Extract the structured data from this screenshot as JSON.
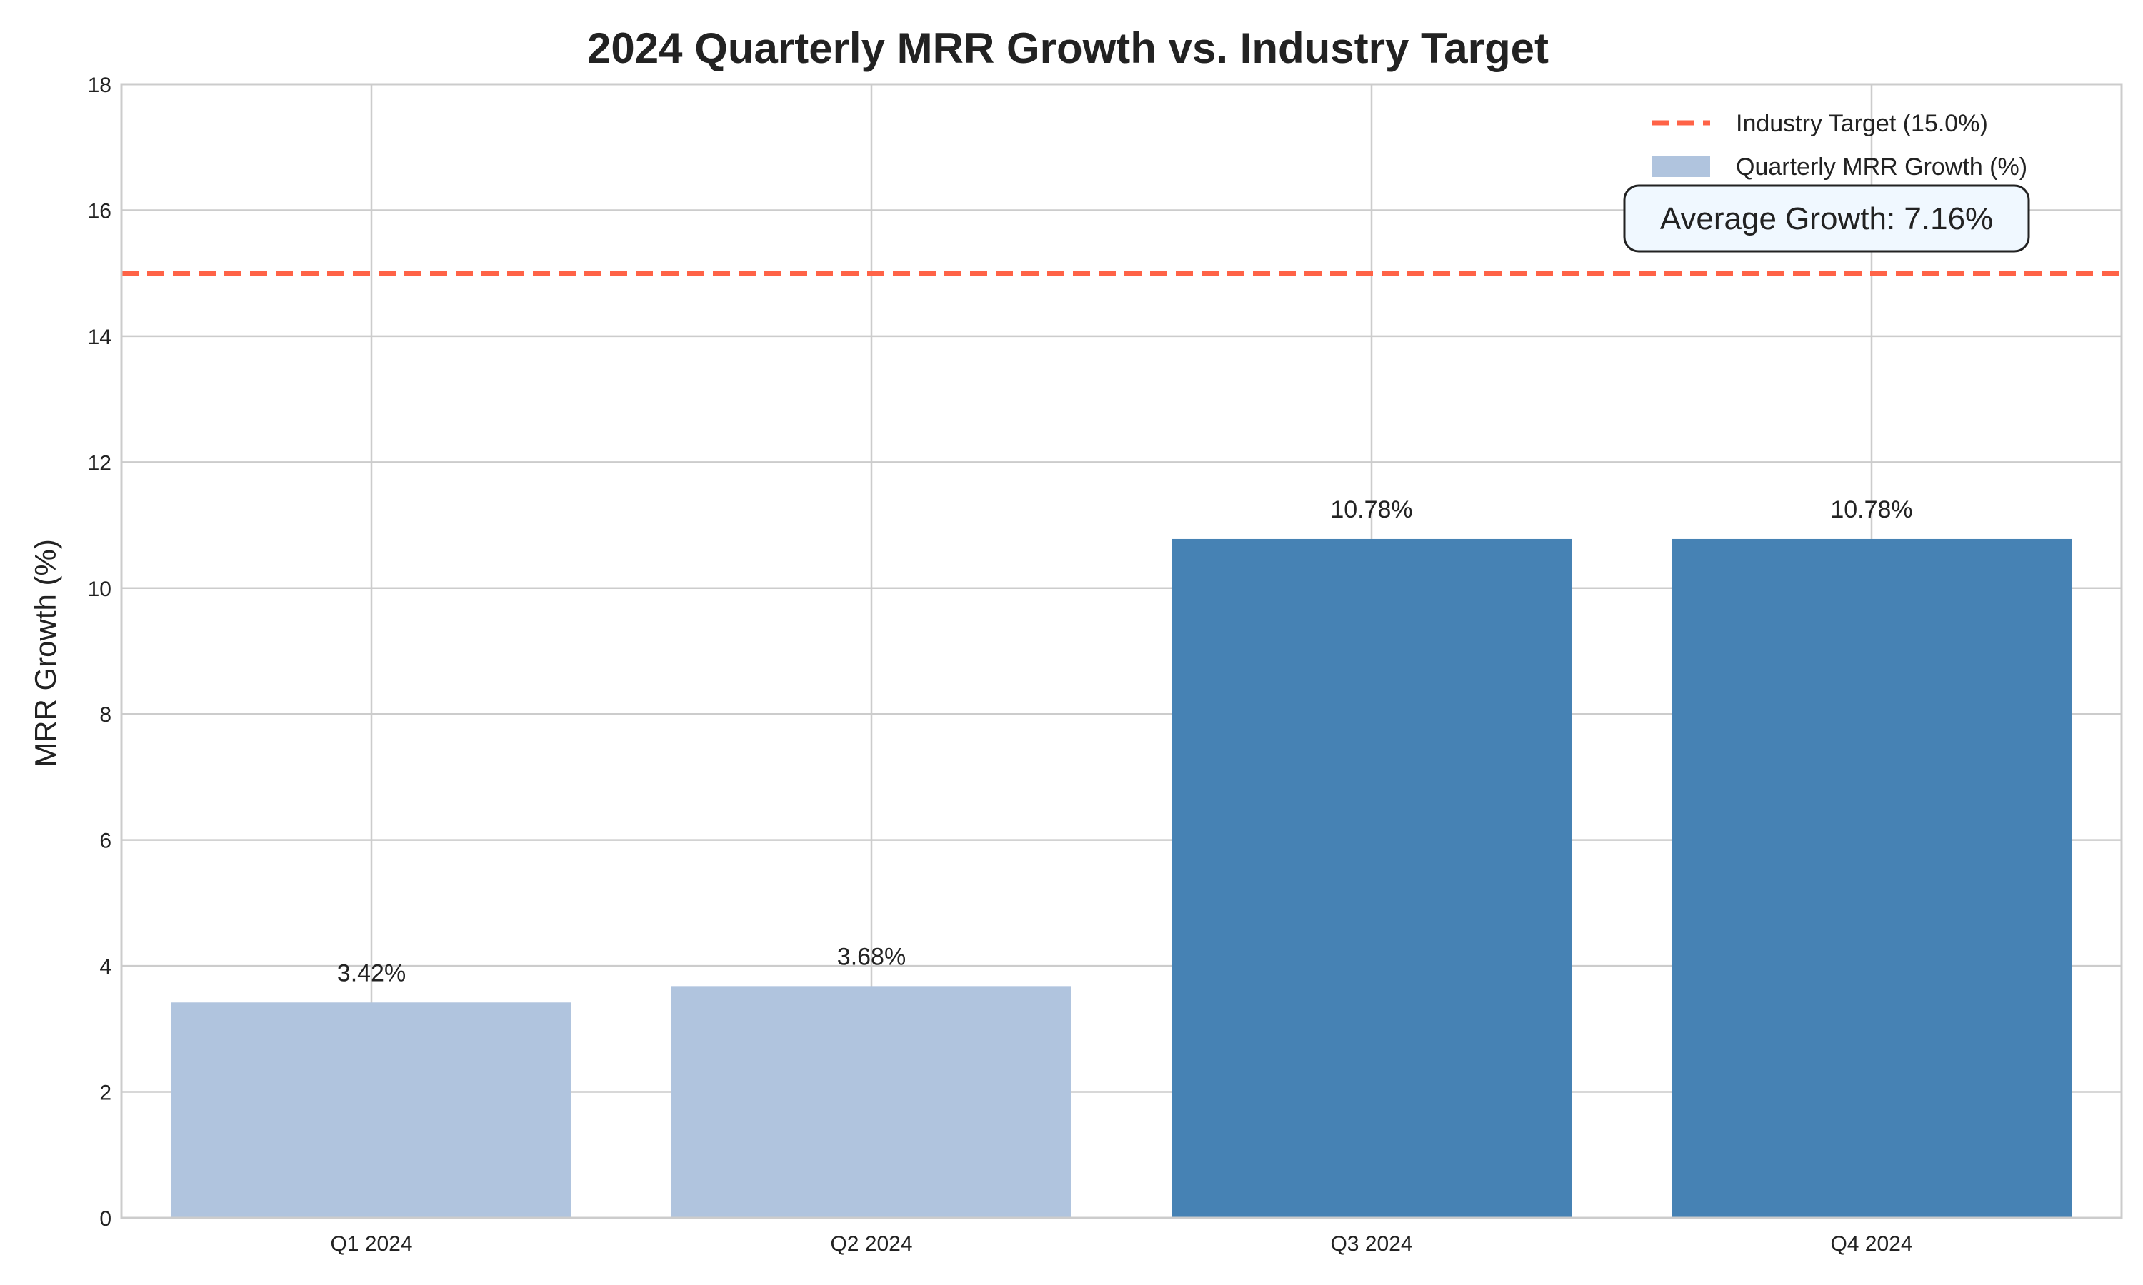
{
  "chart_data": {
    "type": "bar",
    "title": "2024 Quarterly MRR Growth vs. Industry Target",
    "xlabel": "",
    "ylabel": "MRR Growth (%)",
    "ylim": [
      0,
      18
    ],
    "yticks": [
      0,
      2,
      4,
      6,
      8,
      10,
      12,
      14,
      16,
      18
    ],
    "categories": [
      "Q1 2024",
      "Q2 2024",
      "Q3 2024",
      "Q4 2024"
    ],
    "series": [
      {
        "name": "Quarterly MRR Growth (%)",
        "values": [
          3.42,
          3.68,
          10.78,
          10.78
        ],
        "value_labels": [
          "3.42%",
          "3.68%",
          "10.78%",
          "10.78%"
        ],
        "colors": [
          "#b0c4de",
          "#b0c4de",
          "#4682b4",
          "#4682b4"
        ]
      }
    ],
    "reference_line": {
      "name": "Industry Target (15.0%)",
      "value": 15.0,
      "color": "#ff6347",
      "style": "dashed"
    },
    "annotation": {
      "text": "Average Growth: 7.16%",
      "value": 7.16
    },
    "legend": {
      "placement": "top-right",
      "entries": [
        "Industry Target (15.0%)",
        "Quarterly MRR Growth (%)"
      ]
    },
    "grid": true
  }
}
